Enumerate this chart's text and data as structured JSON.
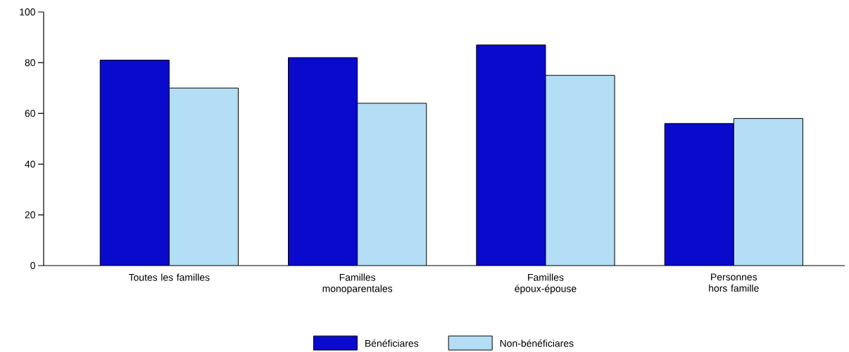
{
  "chart_data": {
    "type": "bar",
    "categories": [
      "Toutes les familles",
      "Familles monoparentales",
      "Familles époux-épouse",
      "Personnes hors famille"
    ],
    "series": [
      {
        "name": "Bénéficiares",
        "color": "#0a0acc",
        "values": [
          81,
          82,
          87,
          56
        ]
      },
      {
        "name": "Non-bénéficiares",
        "color": "#b3def5",
        "values": [
          70,
          64,
          75,
          58
        ]
      }
    ],
    "ylim": [
      0,
      100
    ],
    "yticks": [
      0,
      20,
      40,
      60,
      80,
      100
    ],
    "grid": false,
    "legend": "bottom"
  }
}
